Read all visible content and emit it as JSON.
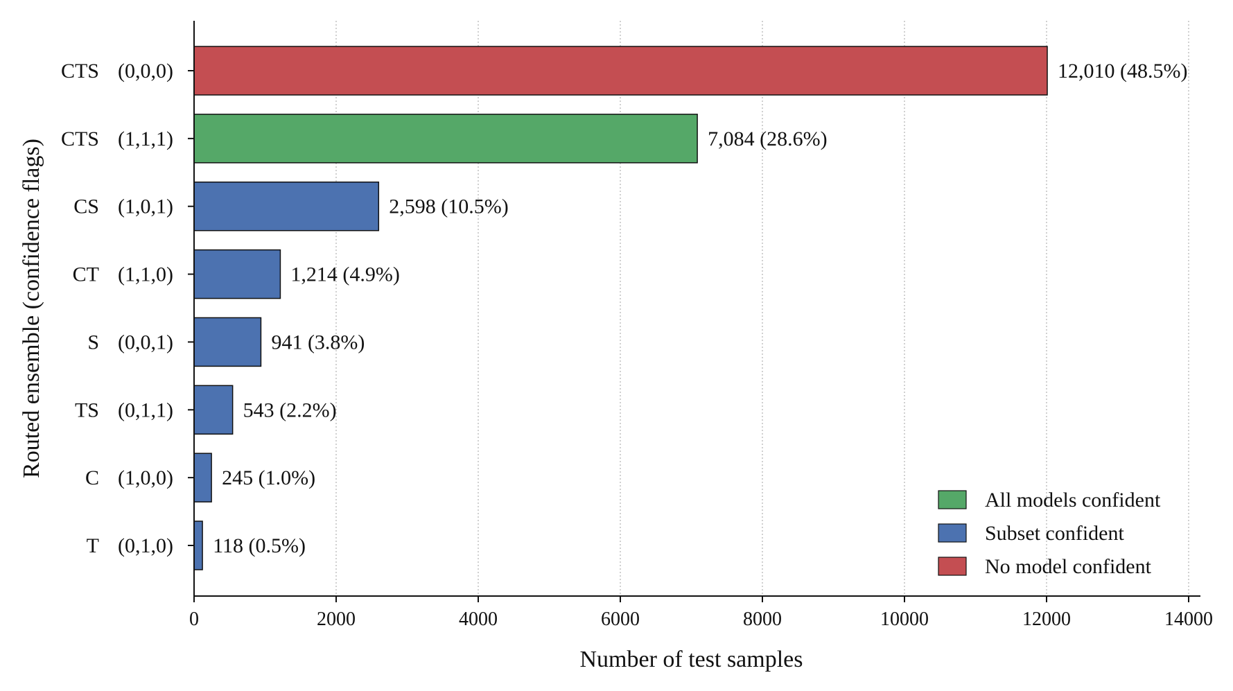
{
  "chart_data": {
    "type": "bar",
    "orientation": "horizontal",
    "title": "",
    "xlabel": "Number of test samples",
    "ylabel": "Routed ensemble  (confidence flags)",
    "xlim": [
      0,
      14000
    ],
    "xticks": [
      0,
      2000,
      4000,
      6000,
      8000,
      10000,
      12000,
      14000
    ],
    "grid": "x dotted",
    "legend_position": "bottom-right",
    "colors": {
      "all": "#55a868",
      "subset": "#4c72b0",
      "none": "#c44e52"
    },
    "legend": [
      {
        "key": "all",
        "label": "All models confident"
      },
      {
        "key": "subset",
        "label": "Subset confident"
      },
      {
        "key": "none",
        "label": "No model confident"
      }
    ],
    "bars": [
      {
        "name": "CTS",
        "flags": "(0,0,0)",
        "value": 12010,
        "value_label": "12,010 (48.5%)",
        "group": "none"
      },
      {
        "name": "CTS",
        "flags": "(1,1,1)",
        "value": 7084,
        "value_label": "7,084 (28.6%)",
        "group": "all"
      },
      {
        "name": "CS",
        "flags": "(1,0,1)",
        "value": 2598,
        "value_label": "2,598 (10.5%)",
        "group": "subset"
      },
      {
        "name": "CT",
        "flags": "(1,1,0)",
        "value": 1214,
        "value_label": "1,214 (4.9%)",
        "group": "subset"
      },
      {
        "name": "S",
        "flags": "(0,0,1)",
        "value": 941,
        "value_label": "941 (3.8%)",
        "group": "subset"
      },
      {
        "name": "TS",
        "flags": "(0,1,1)",
        "value": 543,
        "value_label": "543 (2.2%)",
        "group": "subset"
      },
      {
        "name": "C",
        "flags": "(1,0,0)",
        "value": 245,
        "value_label": "245 (1.0%)",
        "group": "subset"
      },
      {
        "name": "T",
        "flags": "(0,1,0)",
        "value": 118,
        "value_label": "118 (0.5%)",
        "group": "subset"
      }
    ]
  }
}
